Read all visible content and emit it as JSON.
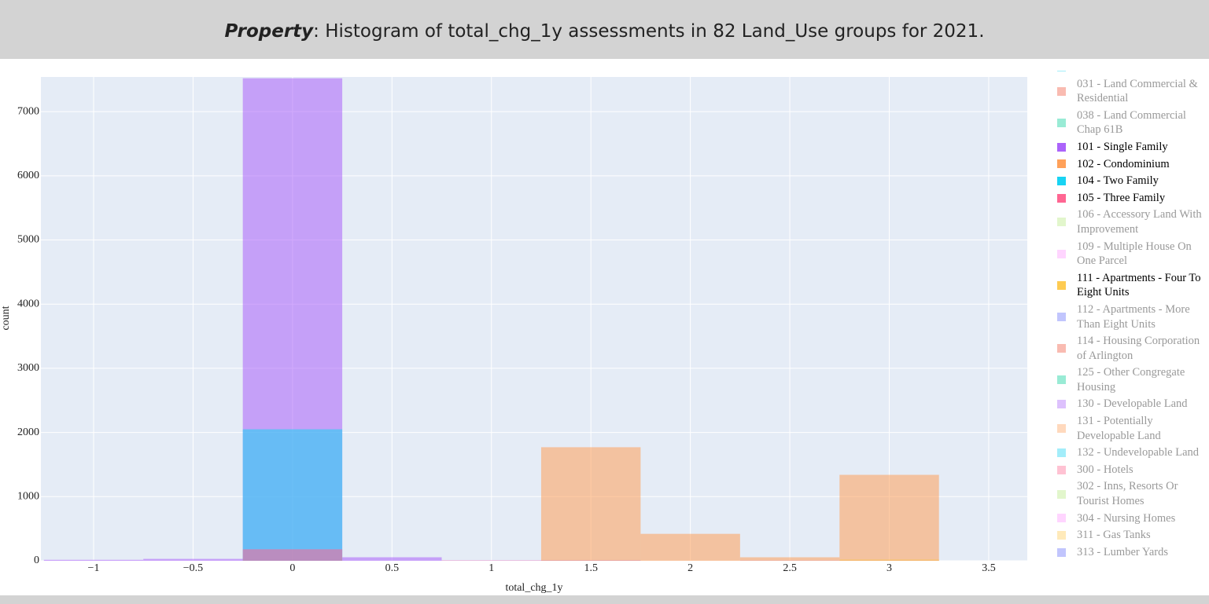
{
  "chart_data": {
    "type": "histogram",
    "title_emphasis": "Property",
    "title": ": Histogram of total_chg_1y assessments in 82 Land_Use groups for 2021.",
    "x_label": "total_chg_1y",
    "y_label": "count",
    "bins": [
      -1.25,
      -0.75,
      -0.25,
      0.25,
      0.75,
      1.25,
      1.75,
      2.25,
      2.75,
      3.25
    ],
    "xlim": [
      -1.265,
      3.694
    ],
    "ylim": [
      0,
      7540
    ],
    "xticks": [
      {
        "value": -1,
        "label": "−1"
      },
      {
        "value": -0.5,
        "label": "−0.5"
      },
      0,
      0.5,
      1,
      1.5,
      2,
      2.5,
      3,
      3.5
    ],
    "yticks": [
      0,
      1000,
      2000,
      3000,
      4000,
      5000,
      6000,
      7000
    ],
    "grid": true,
    "barmode": "overlay",
    "opacity": 0.55,
    "series": [
      {
        "name": "Commercial",
        "color": "#19d3f3",
        "visible": false
      },
      {
        "name": "031 - Land Commercial & Residential",
        "color": "#EF553B",
        "visible": false
      },
      {
        "name": "038 - Land Commercial Chap 61B",
        "color": "#00cc96",
        "visible": false
      },
      {
        "name": "101 - Single Family",
        "color": "#ab63fa",
        "visible": true,
        "values": [
          15,
          30,
          7520,
          55,
          5,
          10,
          0,
          5,
          10
        ]
      },
      {
        "name": "102 - Condominium",
        "color": "#FFA15A",
        "visible": true,
        "values": [
          0,
          0,
          0,
          0,
          0,
          1770,
          420,
          55,
          1340
        ]
      },
      {
        "name": "104 - Two Family",
        "color": "#19d3f3",
        "visible": true,
        "values": [
          0,
          0,
          2050,
          0,
          0,
          0,
          0,
          0,
          0
        ]
      },
      {
        "name": "105 - Three Family",
        "color": "#FF6692",
        "visible": true,
        "values": [
          0,
          0,
          180,
          0,
          5,
          0,
          0,
          0,
          0
        ]
      },
      {
        "name": "106 - Accessory Land With Improvement",
        "color": "#B6E880",
        "visible": false
      },
      {
        "name": "109 - Multiple House On One Parcel",
        "color": "#FF97FF",
        "visible": false
      },
      {
        "name": "111 - Apartments - Four To Eight Units",
        "color": "#FECB52",
        "visible": true,
        "values": [
          0,
          0,
          0,
          0,
          0,
          0,
          0,
          0,
          20
        ]
      },
      {
        "name": "112 - Apartments - More Than Eight Units",
        "color": "#636efa",
        "visible": false
      },
      {
        "name": "114 - Housing Corporation of Arlington",
        "color": "#EF553B",
        "visible": false
      },
      {
        "name": "125 - Other Congregate Housing",
        "color": "#00cc96",
        "visible": false
      },
      {
        "name": "130 - Developable Land",
        "color": "#ab63fa",
        "visible": false
      },
      {
        "name": "131 - Potentially Developable Land",
        "color": "#FFA15A",
        "visible": false
      },
      {
        "name": "132 - Undevelopable Land",
        "color": "#19d3f3",
        "visible": false
      },
      {
        "name": "300 - Hotels",
        "color": "#FF6692",
        "visible": false
      },
      {
        "name": "302 - Inns, Resorts Or Tourist Homes",
        "color": "#B6E880",
        "visible": false
      },
      {
        "name": "304 - Nursing Homes",
        "color": "#FF97FF",
        "visible": false
      },
      {
        "name": "311 - Gas Tanks",
        "color": "#FECB52",
        "visible": false
      },
      {
        "name": "313 - Lumber Yards",
        "color": "#636efa",
        "visible": false
      }
    ]
  }
}
